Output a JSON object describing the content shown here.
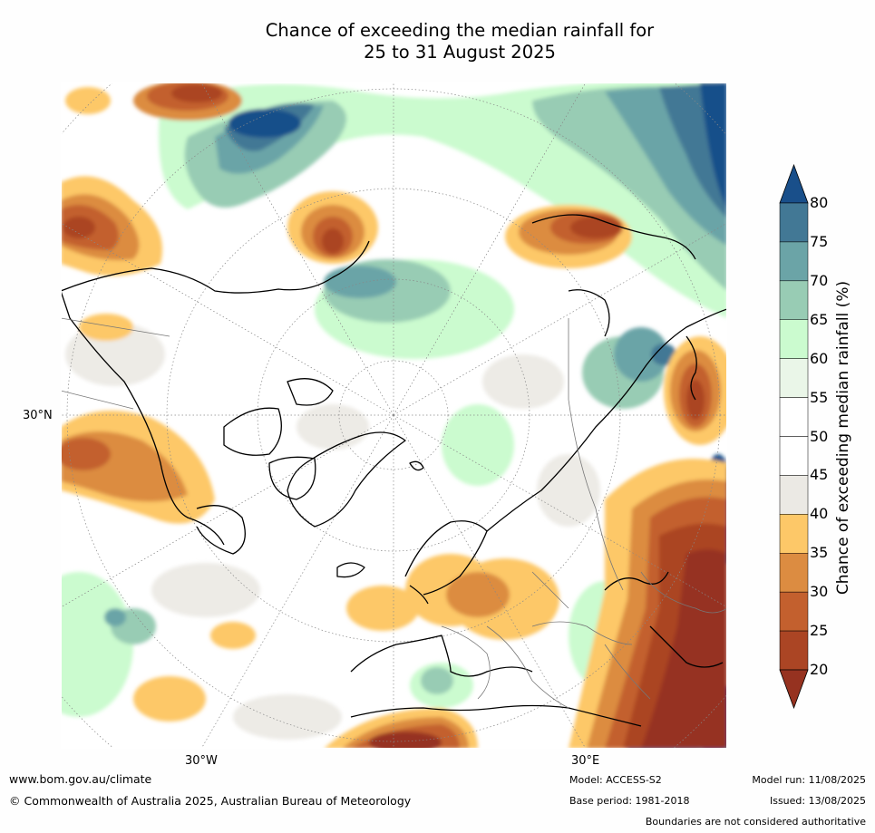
{
  "title": {
    "line1": "Chance of exceeding the median rainfall for",
    "line2": "25 to 31 August 2025"
  },
  "map": {
    "projection": "north-polar-stereographic",
    "labels": {
      "lat_30n": "30°N",
      "lon_30w": "30°W",
      "lon_30e": "30°E"
    },
    "notable_regions": [
      {
        "region": "western-north-america",
        "category": "below-median"
      },
      {
        "region": "northern-europe",
        "category": "below-median"
      },
      {
        "region": "middle-east-north-africa",
        "category": "strongly-below-median"
      },
      {
        "region": "north-pacific",
        "category": "above-median"
      },
      {
        "region": "western-pacific-east-asia",
        "category": "above-median"
      },
      {
        "region": "arctic-greenland",
        "category": "near-median"
      }
    ]
  },
  "colorbar": {
    "title": "Chance of exceeding median rainfall (%)",
    "ticks": [
      "20",
      "25",
      "30",
      "35",
      "40",
      "45",
      "50",
      "55",
      "60",
      "65",
      "70",
      "75",
      "80"
    ],
    "bins": [
      {
        "range": "20-25",
        "color": "#ab4524"
      },
      {
        "range": "25-30",
        "color": "#c3602e"
      },
      {
        "range": "30-35",
        "color": "#dc8c41"
      },
      {
        "range": "35-40",
        "color": "#fdc868"
      },
      {
        "range": "40-45",
        "color": "#ebe9e4"
      },
      {
        "range": "45-50",
        "color": "#ffffff"
      },
      {
        "range": "50-55",
        "color": "#ffffff"
      },
      {
        "range": "55-60",
        "color": "#eaf6e8"
      },
      {
        "range": "60-65",
        "color": "#cbfbcf"
      },
      {
        "range": "65-70",
        "color": "#98ccb4"
      },
      {
        "range": "70-75",
        "color": "#6ba4a7"
      },
      {
        "range": "75-80",
        "color": "#427895"
      }
    ],
    "under_color": "#963220",
    "over_color": "#194f8a"
  },
  "footer": {
    "url": "www.bom.gov.au/climate",
    "copyright": "© Commonwealth of Australia 2025, Australian Bureau of Meteorology",
    "model": "Model: ACCESS-S2",
    "base_period": "Base period: 1981-2018",
    "model_run": "Model run: 11/08/2025",
    "issued": "Issued: 13/08/2025",
    "disclaimer": "Boundaries are not considered authoritative"
  }
}
